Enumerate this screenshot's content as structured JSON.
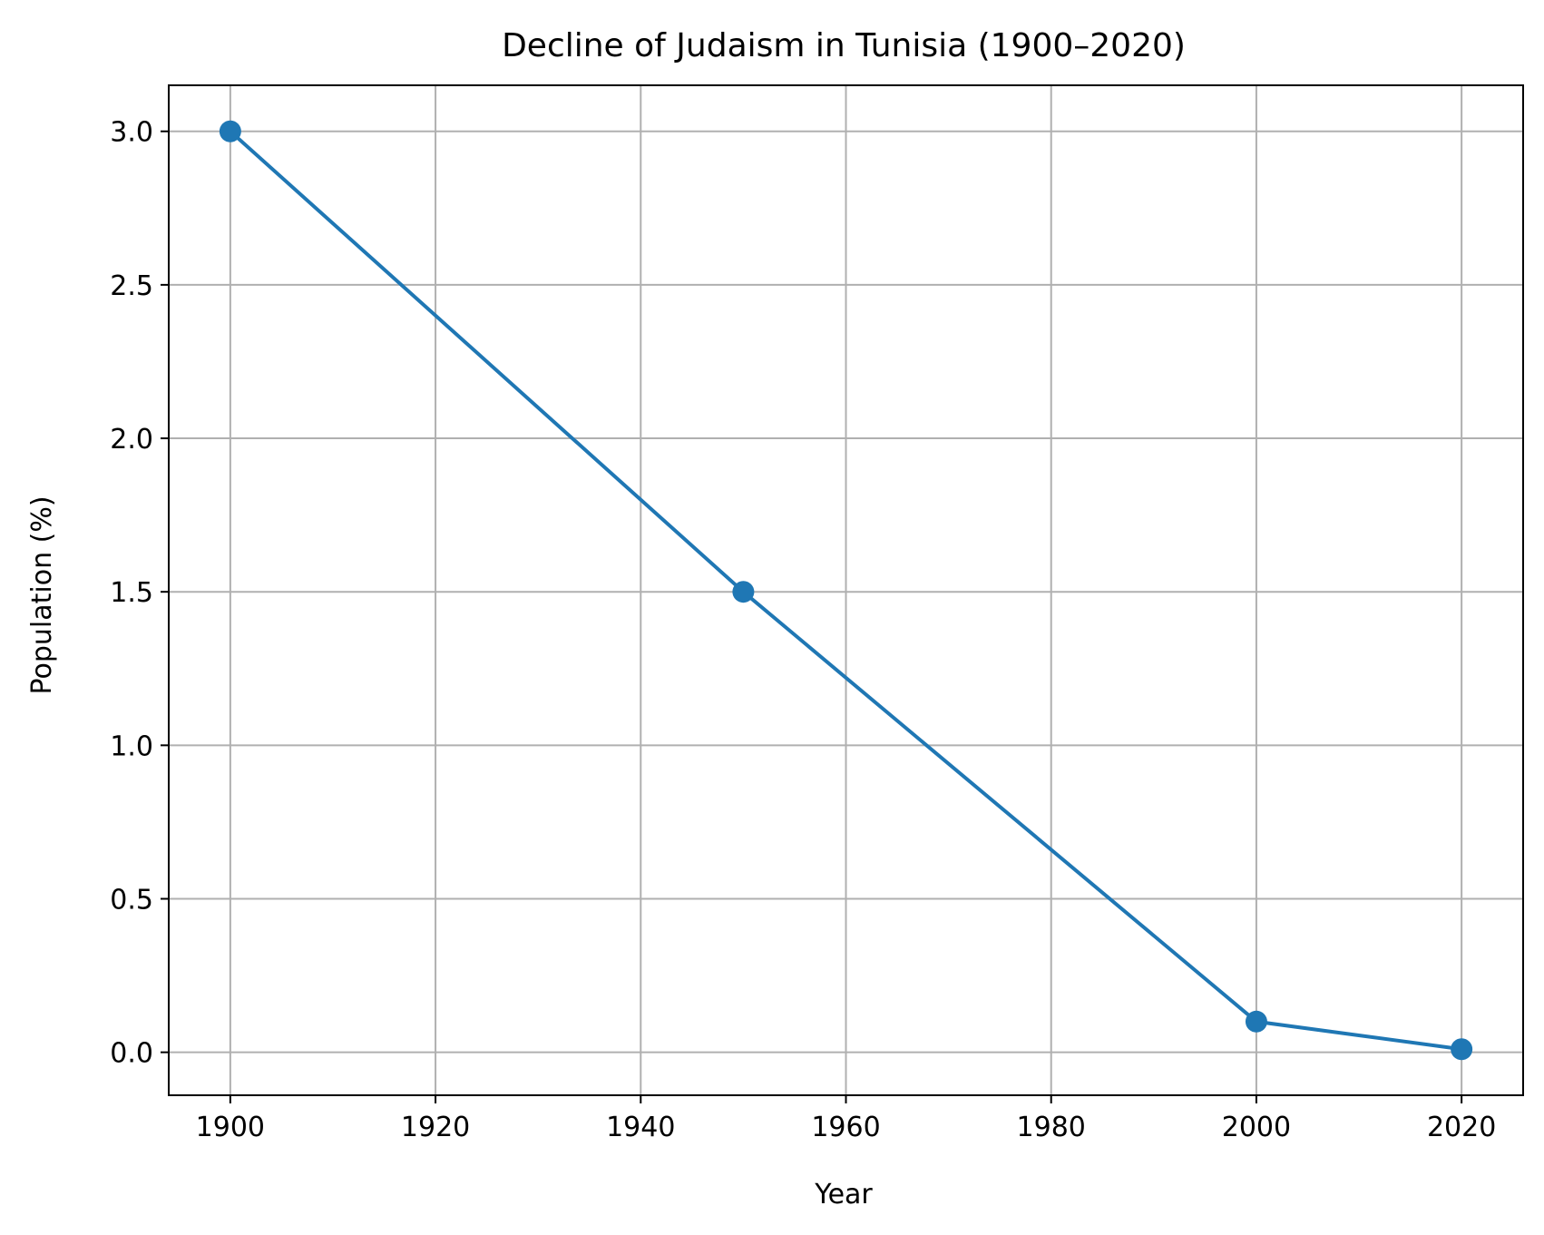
{
  "chart_data": {
    "type": "line",
    "title": "Decline of Judaism in Tunisia (1900–2020)",
    "xlabel": "Year",
    "ylabel": "Population (%)",
    "x": [
      1900,
      1950,
      2000,
      2020
    ],
    "series": [
      {
        "values": [
          3.0,
          1.5,
          0.1,
          0.01
        ]
      }
    ],
    "xlim": [
      1894,
      2026
    ],
    "ylim": [
      -0.14,
      3.15
    ],
    "x_ticks": [
      1900,
      1920,
      1940,
      1960,
      1980,
      2000,
      2020
    ],
    "x_tick_labels": [
      "1900",
      "1920",
      "1940",
      "1960",
      "1980",
      "2000",
      "2020"
    ],
    "y_ticks": [
      0.0,
      0.5,
      1.0,
      1.5,
      2.0,
      2.5,
      3.0
    ],
    "y_tick_labels": [
      "0.0",
      "0.5",
      "1.0",
      "1.5",
      "2.0",
      "2.5",
      "3.0"
    ],
    "grid": true,
    "line_color": "#1f77b4",
    "grid_color": "#b0b0b0",
    "marker": "circle"
  }
}
